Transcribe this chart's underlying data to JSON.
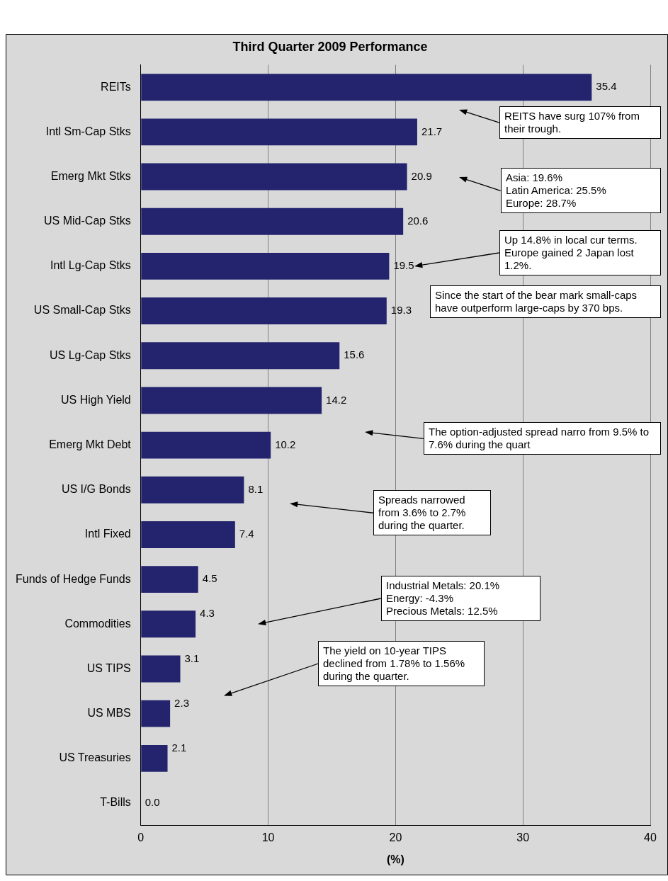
{
  "chart_data": {
    "type": "bar",
    "orientation": "horizontal",
    "title": "Third Quarter 2009 Performance",
    "xlabel": "(%)",
    "categories": [
      "REITs",
      "Intl Sm-Cap Stks",
      "Emerg Mkt Stks",
      "US Mid-Cap Stks",
      "Intl Lg-Cap Stks",
      "US Small-Cap Stks",
      "US Lg-Cap Stks",
      "US High Yield",
      "Emerg Mkt Debt",
      "US I/G Bonds",
      "Intl Fixed",
      "Funds of Hedge Funds",
      "Commodities",
      "US TIPS",
      "US MBS",
      "US Treasuries",
      "T-Bills"
    ],
    "values": [
      35.4,
      21.7,
      20.9,
      20.6,
      19.5,
      19.3,
      15.6,
      14.2,
      10.2,
      8.1,
      7.4,
      4.5,
      4.3,
      3.1,
      2.3,
      2.1,
      0.0
    ],
    "value_labels": [
      "35.4",
      "21.7",
      "20.9",
      "20.6",
      "19.5",
      "19.3",
      "15.6",
      "14.2",
      "10.2",
      "8.1",
      "7.4",
      "4.5",
      "4.3",
      "3.1",
      "2.3",
      "2.1",
      "0.0"
    ],
    "color": "#23236e",
    "xlim": [
      0,
      40
    ],
    "xticks": [
      0,
      10,
      20,
      30,
      40
    ],
    "grid": "x",
    "legend": false,
    "annotations": [
      "REITS have surg 107% from their trough.",
      "Asia: 19.6%\nLatin America: 25.5%\nEurope: 28.7%",
      "Up 14.8% in local cur terms. Europe gained 2 Japan lost 1.2%.",
      "Since the start of the bear mark small-caps have outperform large-caps by 370 bps.",
      "The option-adjusted spread narro from 9.5% to 7.6% during the quart",
      "Spreads narrowed from 3.6% to 2.7% during the quarter.",
      "Industrial Metals: 20.1%\nEnergy: -4.3%\nPrecious Metals: 12.5%",
      "The yield on 10-year TIPS declined from 1.78% to 1.56% during the quarter."
    ]
  }
}
